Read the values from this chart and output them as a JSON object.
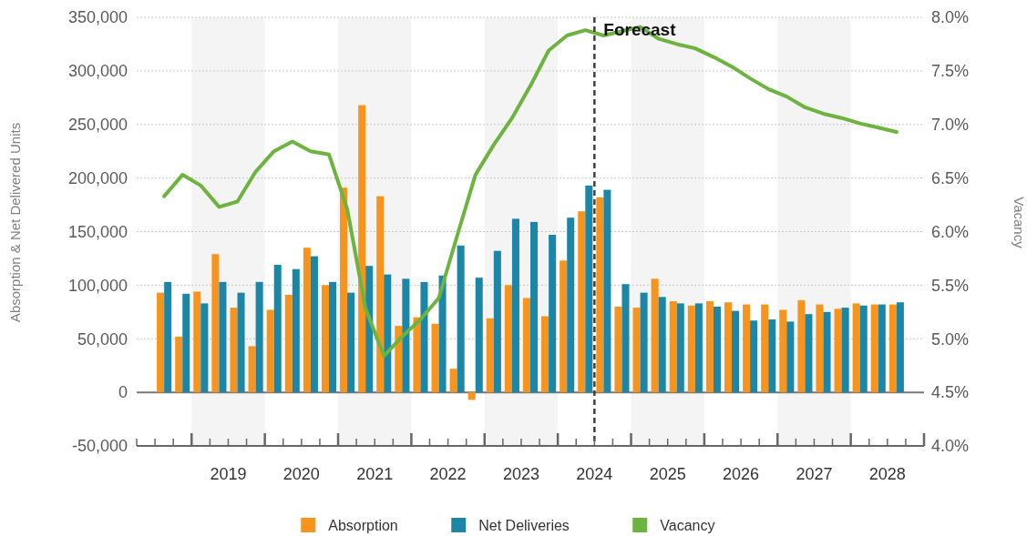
{
  "chart_data": {
    "type": "bar",
    "ylabel": "Absorption & Net Delivered Units",
    "y2label": "Vacancy",
    "x": [
      2018.625,
      2018.875,
      2019.125,
      2019.375,
      2019.625,
      2019.875,
      2020.125,
      2020.375,
      2020.625,
      2020.875,
      2021.125,
      2021.375,
      2021.625,
      2021.875,
      2022.125,
      2022.375,
      2022.625,
      2022.875,
      2023.125,
      2023.375,
      2023.625,
      2023.875,
      2024.125,
      2024.375,
      2024.625,
      2024.875,
      2025.125,
      2025.375,
      2025.625,
      2025.875,
      2026.125,
      2026.375,
      2026.625,
      2026.875,
      2027.125,
      2027.375,
      2027.625,
      2027.875,
      2028.125,
      2028.375,
      2028.625
    ],
    "series": [
      {
        "name": "Absorption",
        "color": "#f7941d",
        "values": [
          93000,
          52000,
          94000,
          129000,
          79000,
          43000,
          77000,
          91000,
          135000,
          100000,
          191000,
          268000,
          183000,
          62000,
          70000,
          64000,
          22000,
          -7000,
          69000,
          100000,
          88000,
          71000,
          123000,
          169000,
          182000,
          80000,
          79000,
          106000,
          85000,
          81000,
          85000,
          84000,
          82000,
          82000,
          77000,
          86000,
          82000,
          78000,
          83000,
          82000,
          82000
        ]
      },
      {
        "name": "Net Deliveries",
        "color": "#1b86a6",
        "values": [
          103000,
          92000,
          83000,
          103000,
          93000,
          103000,
          119000,
          115000,
          127000,
          103000,
          93000,
          118000,
          110000,
          106000,
          103000,
          109000,
          137000,
          107000,
          132000,
          162000,
          159000,
          147000,
          163000,
          193000,
          189000,
          101000,
          93000,
          89000,
          83000,
          83000,
          80000,
          76000,
          67000,
          68000,
          66000,
          73000,
          75000,
          79000,
          81000,
          82000,
          84000
        ]
      },
      {
        "name": "Vacancy",
        "type": "line",
        "axis": "y2",
        "color": "#6db33f",
        "values": [
          6.33,
          6.53,
          6.43,
          6.23,
          6.28,
          6.56,
          6.75,
          6.84,
          6.75,
          6.72,
          6.21,
          5.28,
          4.84,
          5.02,
          5.18,
          5.38,
          5.96,
          6.53,
          6.81,
          7.06,
          7.36,
          7.69,
          7.83,
          7.88,
          7.83,
          7.87,
          7.91,
          7.8,
          7.75,
          7.71,
          7.63,
          7.54,
          7.43,
          7.33,
          7.26,
          7.16,
          7.1,
          7.06,
          7.01,
          6.97,
          6.93
        ]
      }
    ],
    "xlim": [
      2018.25,
      2029
    ],
    "xticks": [
      {
        "value": 2018.25,
        "label": null
      },
      {
        "value": 2018.5,
        "label": null
      },
      {
        "value": 2018.75,
        "label": null
      },
      {
        "value": 2019,
        "label": null
      },
      {
        "value": 2019.25,
        "label": null
      },
      {
        "value": 2019.5,
        "label": "2019"
      },
      {
        "value": 2019.75,
        "label": null
      },
      {
        "value": 2020,
        "label": null
      },
      {
        "value": 2020.25,
        "label": null
      },
      {
        "value": 2020.5,
        "label": "2020"
      },
      {
        "value": 2020.75,
        "label": null
      },
      {
        "value": 2021,
        "label": null
      },
      {
        "value": 2021.25,
        "label": null
      },
      {
        "value": 2021.5,
        "label": "2021"
      },
      {
        "value": 2021.75,
        "label": null
      },
      {
        "value": 2022,
        "label": null
      },
      {
        "value": 2022.25,
        "label": null
      },
      {
        "value": 2022.5,
        "label": "2022"
      },
      {
        "value": 2022.75,
        "label": null
      },
      {
        "value": 2023,
        "label": null
      },
      {
        "value": 2023.25,
        "label": null
      },
      {
        "value": 2023.5,
        "label": "2023"
      },
      {
        "value": 2023.75,
        "label": null
      },
      {
        "value": 2024,
        "label": null
      },
      {
        "value": 2024.25,
        "label": null
      },
      {
        "value": 2024.5,
        "label": "2024"
      },
      {
        "value": 2024.75,
        "label": null
      },
      {
        "value": 2025,
        "label": null
      },
      {
        "value": 2025.25,
        "label": null
      },
      {
        "value": 2025.5,
        "label": "2025"
      },
      {
        "value": 2025.75,
        "label": null
      },
      {
        "value": 2026,
        "label": null
      },
      {
        "value": 2026.25,
        "label": null
      },
      {
        "value": 2026.5,
        "label": "2026"
      },
      {
        "value": 2026.75,
        "label": null
      },
      {
        "value": 2027,
        "label": null
      },
      {
        "value": 2027.25,
        "label": null
      },
      {
        "value": 2027.5,
        "label": "2027"
      },
      {
        "value": 2027.75,
        "label": null
      },
      {
        "value": 2028,
        "label": null
      },
      {
        "value": 2028.25,
        "label": null
      },
      {
        "value": 2028.5,
        "label": "2028"
      },
      {
        "value": 2028.75,
        "label": null
      },
      {
        "value": 2029,
        "label": null
      }
    ],
    "ylim": [
      -50000,
      350000
    ],
    "yticks": [
      {
        "value": -50000,
        "label": "-50,000"
      },
      0,
      {
        "value": 50000,
        "label": "50,000"
      },
      {
        "value": 100000,
        "label": "100,000"
      },
      {
        "value": 150000,
        "label": "150,000"
      },
      {
        "value": 200000,
        "label": "200,000"
      },
      {
        "value": 250000,
        "label": "250,000"
      },
      {
        "value": 300000,
        "label": "300,000"
      },
      {
        "value": 350000,
        "label": "350,000"
      }
    ],
    "y2lim": [
      4,
      8
    ],
    "y2ticks": [
      {
        "value": 4,
        "label": "4.0%"
      },
      {
        "value": 4.5,
        "label": "4.5%"
      },
      {
        "value": 5,
        "label": "5.0%"
      },
      {
        "value": 5.5,
        "label": "5.5%"
      },
      {
        "value": 6,
        "label": "6.0%"
      },
      {
        "value": 6.5,
        "label": "6.5%"
      },
      {
        "value": 7,
        "label": "7.0%"
      },
      {
        "value": 7.5,
        "label": "7.5%"
      },
      {
        "value": 8,
        "label": "8.0%"
      }
    ],
    "bands": [
      {
        "axis": "x",
        "from": 2019,
        "to": 2020,
        "color": "#f4f4f4"
      },
      {
        "axis": "x",
        "from": 2021,
        "to": 2022,
        "color": "#f4f4f4"
      },
      {
        "axis": "x",
        "from": 2023,
        "to": 2024,
        "color": "#f4f4f4"
      },
      {
        "axis": "x",
        "from": 2025,
        "to": 2026,
        "color": "#f4f4f4"
      },
      {
        "axis": "x",
        "from": 2027,
        "to": 2028,
        "color": "#f4f4f4"
      }
    ],
    "ref_lines": [
      {
        "axis": "x",
        "value": 2024.5,
        "label": "Forecast",
        "color": "#404040",
        "line_style": "dashed"
      }
    ],
    "grid": "y",
    "legend": "bottom",
    "marker": "none",
    "line_style": "solid"
  }
}
